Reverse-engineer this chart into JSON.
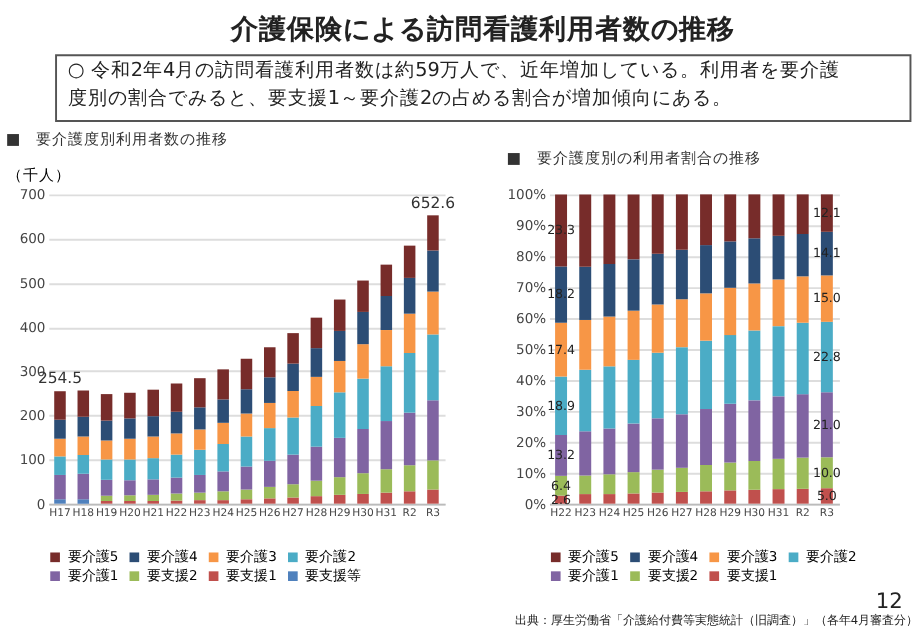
{
  "chart_data": [
    {
      "type": "other",
      "title": "介護保険による訪問看護利用者数の推移",
      "annotations": [
        "○ 令和2年4月の訪問看護利用者数は約59万人で、近年増加している。利用者を要介護度別の割合でみると、要支援1～要介護2の占める割合が増加傾向にある。",
        "12",
        "出典：厚生労働省「介護給付費等実態統計（旧調査）」（各年4月審査分）"
      ]
    },
    {
      "type": "bar",
      "stacked": true,
      "title": "■　要介護度別利用者数の推移",
      "ylabel": "（千人）",
      "legend": "bottom",
      "grid": "y",
      "categories": [
        "H17",
        "H18",
        "H19",
        "H20",
        "H21",
        "H22",
        "H23",
        "H24",
        "H25",
        "H26",
        "H27",
        "H28",
        "H29",
        "H30",
        "H31",
        "R2",
        "R3"
      ],
      "ylim": [
        0,
        700
      ],
      "yticks": [
        0,
        100,
        200,
        300,
        400,
        500,
        600,
        700
      ],
      "totals": [
        "254.5",
        null,
        null,
        null,
        null,
        null,
        null,
        null,
        null,
        null,
        null,
        null,
        null,
        null,
        null,
        null,
        "652.6"
      ],
      "series": [
        {
          "name": "要支援等",
          "color": "#4f81bd",
          "values": [
            10,
            10,
            null,
            null,
            null,
            null,
            null,
            null,
            null,
            null,
            null,
            null,
            null,
            null,
            null,
            null,
            null
          ]
        },
        {
          "name": "要支援1",
          "color": "#c0504d",
          "values": [
            null,
            null,
            6,
            6,
            6,
            7,
            8,
            8,
            10,
            12,
            14,
            17,
            20,
            22,
            25,
            28,
            32
          ]
        },
        {
          "name": "要支援2",
          "color": "#9bbb59",
          "values": [
            null,
            null,
            12,
            13,
            14,
            16,
            17,
            20,
            22,
            26,
            30,
            35,
            40,
            47,
            53,
            59,
            66
          ]
        },
        {
          "name": "要介護1",
          "color": "#8064a2",
          "values": [
            55,
            58,
            36,
            34,
            35,
            36,
            40,
            45,
            52,
            59,
            67,
            77,
            89,
            100,
            109,
            119,
            136
          ]
        },
        {
          "name": "要介護2",
          "color": "#4bacc6",
          "values": [
            42,
            42,
            46,
            47,
            48,
            52,
            57,
            62,
            68,
            74,
            84,
            92,
            103,
            114,
            124,
            135,
            149
          ]
        },
        {
          "name": "要介護3",
          "color": "#f79646",
          "values": [
            40,
            42,
            43,
            47,
            49,
            48,
            46,
            48,
            52,
            57,
            60,
            66,
            71,
            78,
            82,
            89,
            97
          ]
        },
        {
          "name": "要介護4",
          "color": "#2c4d75",
          "values": [
            43,
            45,
            45,
            46,
            46,
            49,
            50,
            53,
            55,
            58,
            62,
            65,
            68,
            73,
            77,
            81,
            93
          ]
        },
        {
          "name": "要介護5",
          "color": "#772c2a",
          "values": [
            64.5,
            59,
            60,
            58,
            60,
            64,
            66,
            68,
            69,
            68,
            69,
            69,
            71,
            71,
            71,
            73,
            79.6
          ]
        }
      ]
    },
    {
      "type": "bar",
      "stacked": true,
      "title": "■　要介護度別の利用者割合の推移",
      "legend": "bottom",
      "grid": "y",
      "categories": [
        "H22",
        "H23",
        "H24",
        "H25",
        "H26",
        "H27",
        "H28",
        "H29",
        "H30",
        "H31",
        "R2",
        "R3"
      ],
      "ylim": [
        0,
        100
      ],
      "yticks": [
        {
          "value": 0,
          "label": "0%"
        },
        {
          "value": 10,
          "label": "10%"
        },
        {
          "value": 20,
          "label": "20%"
        },
        {
          "value": 30,
          "label": "30%"
        },
        {
          "value": 40,
          "label": "40%"
        },
        {
          "value": 50,
          "label": "50%"
        },
        {
          "value": 60,
          "label": "60%"
        },
        {
          "value": 70,
          "label": "70%"
        },
        {
          "value": 80,
          "label": "80%"
        },
        {
          "value": 90,
          "label": "90%"
        },
        {
          "value": 100,
          "label": "100%"
        }
      ],
      "series": [
        {
          "name": "要支援1",
          "color": "#c0504d",
          "values": [
            2.6,
            3.1,
            3.1,
            3.3,
            3.6,
            3.8,
            4.0,
            4.3,
            4.5,
            4.7,
            4.8,
            5.0
          ],
          "value_labels": [
            "2.6",
            null,
            null,
            null,
            null,
            null,
            null,
            null,
            null,
            null,
            null,
            "5.0"
          ]
        },
        {
          "name": "要支援2",
          "color": "#9bbb59",
          "values": [
            6.4,
            6.0,
            6.4,
            6.9,
            7.4,
            7.8,
            8.5,
            9.0,
            9.3,
            9.8,
            10.1,
            10.0
          ],
          "value_labels": [
            "6.4",
            null,
            null,
            null,
            null,
            null,
            null,
            null,
            null,
            null,
            null,
            "10.0"
          ]
        },
        {
          "name": "要介護1",
          "color": "#8064a2",
          "values": [
            13.2,
            14.3,
            14.8,
            15.7,
            16.6,
            17.3,
            18.1,
            19.0,
            19.6,
            20.2,
            20.5,
            21.0
          ],
          "value_labels": [
            "13.2",
            null,
            null,
            null,
            null,
            null,
            null,
            null,
            null,
            null,
            null,
            "21.0"
          ]
        },
        {
          "name": "要介護2",
          "color": "#4bacc6",
          "values": [
            18.9,
            19.9,
            20.1,
            20.6,
            21.2,
            21.7,
            22.1,
            22.2,
            22.6,
            22.7,
            23.1,
            22.8
          ],
          "value_labels": [
            "18.9",
            null,
            null,
            null,
            null,
            null,
            null,
            null,
            null,
            null,
            null,
            "22.8"
          ]
        },
        {
          "name": "要介護3",
          "color": "#f79646",
          "values": [
            17.4,
            16.1,
            16.1,
            15.9,
            15.6,
            15.5,
            15.3,
            15.3,
            15.2,
            15.1,
            15.0,
            15.0
          ],
          "value_labels": [
            "17.4",
            null,
            null,
            null,
            null,
            null,
            null,
            null,
            null,
            null,
            null,
            "15.0"
          ]
        },
        {
          "name": "要介護4",
          "color": "#2c4d75",
          "values": [
            18.2,
            17.2,
            17.0,
            16.6,
            16.4,
            16.0,
            15.6,
            15.0,
            14.6,
            14.1,
            13.7,
            14.1
          ],
          "value_labels": [
            "18.2",
            null,
            null,
            null,
            null,
            null,
            null,
            null,
            null,
            null,
            null,
            "14.1"
          ]
        },
        {
          "name": "要介護5",
          "color": "#772c2a",
          "values": [
            23.3,
            23.4,
            22.5,
            21.0,
            19.2,
            17.9,
            16.4,
            15.2,
            14.2,
            13.4,
            12.8,
            12.1
          ],
          "value_labels": [
            "23.3",
            null,
            null,
            null,
            null,
            null,
            null,
            null,
            null,
            null,
            null,
            "12.1"
          ]
        }
      ]
    }
  ]
}
